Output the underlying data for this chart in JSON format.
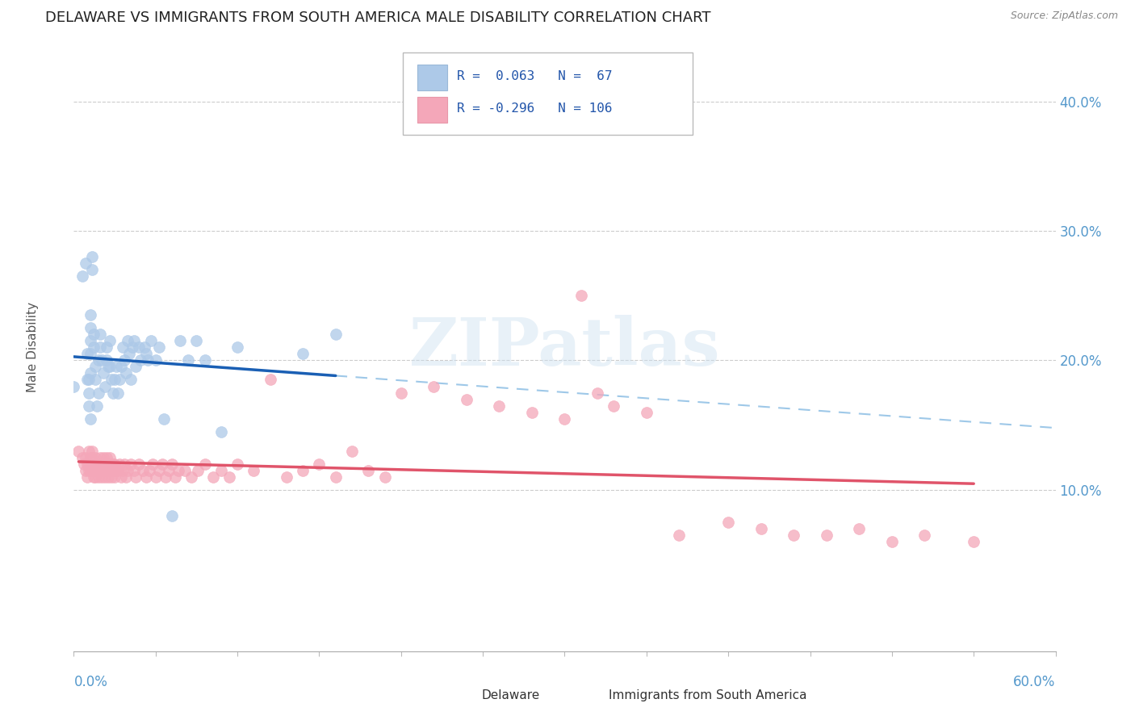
{
  "title": "DELAWARE VS IMMIGRANTS FROM SOUTH AMERICA MALE DISABILITY CORRELATION CHART",
  "source": "Source: ZipAtlas.com",
  "ylabel": "Male Disability",
  "right_yticks": [
    "10.0%",
    "20.0%",
    "30.0%",
    "40.0%"
  ],
  "right_ytick_vals": [
    0.1,
    0.2,
    0.3,
    0.4
  ],
  "xlim": [
    0.0,
    0.6
  ],
  "ylim": [
    -0.025,
    0.445
  ],
  "delaware_color": "#adc9e8",
  "immigrants_color": "#f4a7b9",
  "delaware_line_color": "#1a5fb4",
  "immigrants_line_color": "#e0546a",
  "dashed_line_color": "#9ec8e8",
  "background_color": "#ffffff",
  "watermark": "ZIPatlas",
  "delaware_x": [
    0.0,
    0.005,
    0.007,
    0.008,
    0.008,
    0.009,
    0.009,
    0.009,
    0.01,
    0.01,
    0.01,
    0.01,
    0.01,
    0.01,
    0.011,
    0.011,
    0.012,
    0.012,
    0.013,
    0.013,
    0.014,
    0.015,
    0.015,
    0.016,
    0.016,
    0.017,
    0.018,
    0.019,
    0.02,
    0.02,
    0.021,
    0.022,
    0.022,
    0.023,
    0.024,
    0.025,
    0.026,
    0.027,
    0.028,
    0.029,
    0.03,
    0.031,
    0.032,
    0.033,
    0.034,
    0.035,
    0.036,
    0.037,
    0.038,
    0.04,
    0.041,
    0.043,
    0.044,
    0.045,
    0.047,
    0.05,
    0.052,
    0.055,
    0.06,
    0.065,
    0.07,
    0.075,
    0.08,
    0.09,
    0.1,
    0.14,
    0.16
  ],
  "delaware_y": [
    0.18,
    0.265,
    0.275,
    0.185,
    0.205,
    0.175,
    0.185,
    0.165,
    0.19,
    0.155,
    0.205,
    0.215,
    0.225,
    0.235,
    0.27,
    0.28,
    0.21,
    0.22,
    0.185,
    0.195,
    0.165,
    0.175,
    0.2,
    0.21,
    0.22,
    0.2,
    0.19,
    0.18,
    0.2,
    0.21,
    0.195,
    0.215,
    0.195,
    0.185,
    0.175,
    0.185,
    0.195,
    0.175,
    0.185,
    0.195,
    0.21,
    0.2,
    0.19,
    0.215,
    0.205,
    0.185,
    0.21,
    0.215,
    0.195,
    0.21,
    0.2,
    0.21,
    0.205,
    0.2,
    0.215,
    0.2,
    0.21,
    0.155,
    0.08,
    0.215,
    0.2,
    0.215,
    0.2,
    0.145,
    0.21,
    0.205,
    0.22
  ],
  "immigrants_x": [
    0.003,
    0.005,
    0.006,
    0.007,
    0.007,
    0.008,
    0.008,
    0.009,
    0.009,
    0.009,
    0.01,
    0.01,
    0.01,
    0.011,
    0.011,
    0.011,
    0.012,
    0.012,
    0.012,
    0.013,
    0.013,
    0.013,
    0.014,
    0.014,
    0.015,
    0.015,
    0.016,
    0.016,
    0.017,
    0.017,
    0.018,
    0.018,
    0.019,
    0.019,
    0.02,
    0.02,
    0.021,
    0.021,
    0.022,
    0.022,
    0.023,
    0.023,
    0.024,
    0.024,
    0.025,
    0.025,
    0.026,
    0.027,
    0.028,
    0.029,
    0.03,
    0.031,
    0.032,
    0.033,
    0.035,
    0.037,
    0.038,
    0.04,
    0.042,
    0.044,
    0.046,
    0.048,
    0.05,
    0.052,
    0.054,
    0.056,
    0.058,
    0.06,
    0.062,
    0.064,
    0.068,
    0.072,
    0.076,
    0.08,
    0.085,
    0.09,
    0.095,
    0.1,
    0.11,
    0.12,
    0.13,
    0.14,
    0.15,
    0.16,
    0.17,
    0.18,
    0.19,
    0.2,
    0.22,
    0.24,
    0.26,
    0.28,
    0.3,
    0.31,
    0.32,
    0.33,
    0.35,
    0.37,
    0.4,
    0.42,
    0.44,
    0.46,
    0.48,
    0.5,
    0.52,
    0.55
  ],
  "immigrants_y": [
    0.13,
    0.125,
    0.12,
    0.115,
    0.125,
    0.11,
    0.12,
    0.115,
    0.12,
    0.13,
    0.125,
    0.115,
    0.12,
    0.115,
    0.125,
    0.13,
    0.115,
    0.12,
    0.11,
    0.115,
    0.125,
    0.11,
    0.12,
    0.115,
    0.12,
    0.11,
    0.125,
    0.115,
    0.12,
    0.11,
    0.125,
    0.115,
    0.12,
    0.11,
    0.125,
    0.115,
    0.12,
    0.11,
    0.115,
    0.125,
    0.12,
    0.11,
    0.115,
    0.12,
    0.11,
    0.12,
    0.115,
    0.115,
    0.12,
    0.11,
    0.115,
    0.12,
    0.11,
    0.115,
    0.12,
    0.115,
    0.11,
    0.12,
    0.115,
    0.11,
    0.115,
    0.12,
    0.11,
    0.115,
    0.12,
    0.11,
    0.115,
    0.12,
    0.11,
    0.115,
    0.115,
    0.11,
    0.115,
    0.12,
    0.11,
    0.115,
    0.11,
    0.12,
    0.115,
    0.185,
    0.11,
    0.115,
    0.12,
    0.11,
    0.13,
    0.115,
    0.11,
    0.175,
    0.18,
    0.17,
    0.165,
    0.16,
    0.155,
    0.25,
    0.175,
    0.165,
    0.16,
    0.065,
    0.075,
    0.07,
    0.065,
    0.065,
    0.07,
    0.06,
    0.065,
    0.06
  ]
}
